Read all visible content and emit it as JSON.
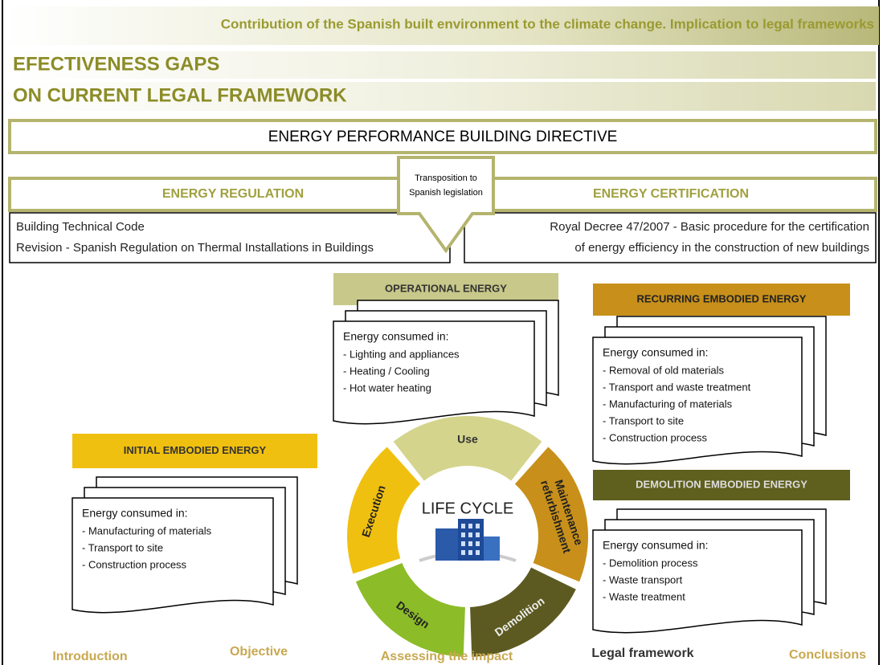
{
  "header": {
    "title": "Contribution of the Spanish built environment to the climate change. Implication to legal frameworks"
  },
  "title": [
    "EFECTIVENESS GAPS",
    "ON CURRENT LEGAL FRAMEWORK"
  ],
  "directive": "ENERGY PERFORMANCE BUILDING DIRECTIVE",
  "transposition": [
    "Transposition to",
    "Spanish legislation"
  ],
  "regulation": {
    "label": "ENERGY REGULATION",
    "lines": [
      "Building Technical Code",
      "Revision - Spanish Regulation on Thermal Installations in Buildings"
    ]
  },
  "certification": {
    "label": "ENERGY CERTIFICATION",
    "lines": [
      "Royal Decree 47/2007 - Basic procedure for the certification",
      "of energy efficiency in the construction of new buildings"
    ]
  },
  "energy_boxes": [
    {
      "label": "OPERATIONAL ENERGY",
      "intro": "Energy consumed in:",
      "items": [
        "- Lighting and appliances",
        "- Heating / Cooling",
        "- Hot water heating"
      ]
    },
    {
      "label": "RECURRING EMBODIED ENERGY",
      "intro": "Energy consumed in:",
      "items": [
        "- Removal of old materials",
        "- Transport and waste treatment",
        "- Manufacturing of materials",
        "- Transport to site",
        "- Construction process"
      ]
    },
    {
      "label": "DEMOLITION EMBODIED ENERGY",
      "intro": "Energy consumed in:",
      "items": [
        "- Demolition process",
        "- Waste transport",
        "- Waste treatment"
      ]
    },
    {
      "label": "INITIAL EMBODIED ENERGY",
      "intro": "Energy consumed in:",
      "items": [
        "- Manufacturing of materials",
        "- Transport to site",
        "- Construction process"
      ]
    }
  ],
  "life_cycle": {
    "center": "LIFE CYCLE",
    "phases": [
      {
        "lines": [
          "Use"
        ]
      },
      {
        "lines": [
          "Maintenance",
          "refurbishment"
        ]
      },
      {
        "lines": [
          "Demolition"
        ]
      },
      {
        "lines": [
          "Design"
        ]
      },
      {
        "lines": [
          "Execution"
        ]
      }
    ]
  },
  "nav": [
    "Introduction",
    "Objective",
    "Assessing the impact",
    "Legal framework",
    "Conclusions"
  ]
}
